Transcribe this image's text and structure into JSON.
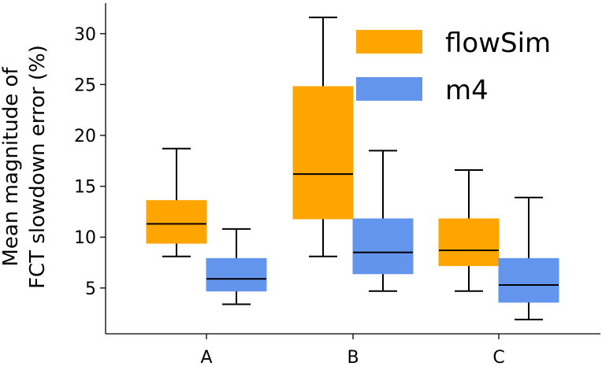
{
  "chart_data": {
    "type": "box",
    "categories": [
      "A",
      "B",
      "C"
    ],
    "ylabel_lines": [
      "Mean magnitude of",
      "FCT slowdown error (%)"
    ],
    "ylim": [
      0.5,
      33
    ],
    "yticks": [
      5,
      10,
      15,
      20,
      25,
      30
    ],
    "legend_position": "top-right",
    "grid": false,
    "series": [
      {
        "name": "flowSim",
        "color": "#FFA500",
        "boxes": [
          {
            "category": "A",
            "whislo": 8.1,
            "q1": 9.4,
            "med": 11.3,
            "q3": 13.6,
            "whishi": 18.7
          },
          {
            "category": "B",
            "whislo": 8.1,
            "q1": 11.8,
            "med": 16.2,
            "q3": 24.8,
            "whishi": 31.6
          },
          {
            "category": "C",
            "whislo": 4.7,
            "q1": 7.2,
            "med": 8.7,
            "q3": 11.8,
            "whishi": 16.6
          }
        ]
      },
      {
        "name": "m4",
        "color": "#6495ED",
        "boxes": [
          {
            "category": "A",
            "whislo": 3.4,
            "q1": 4.7,
            "med": 5.9,
            "q3": 7.9,
            "whishi": 10.8
          },
          {
            "category": "B",
            "whislo": 4.7,
            "q1": 6.4,
            "med": 8.5,
            "q3": 11.8,
            "whishi": 18.5
          },
          {
            "category": "C",
            "whislo": 1.9,
            "q1": 3.6,
            "med": 5.3,
            "q3": 7.9,
            "whishi": 13.9
          }
        ]
      }
    ]
  }
}
